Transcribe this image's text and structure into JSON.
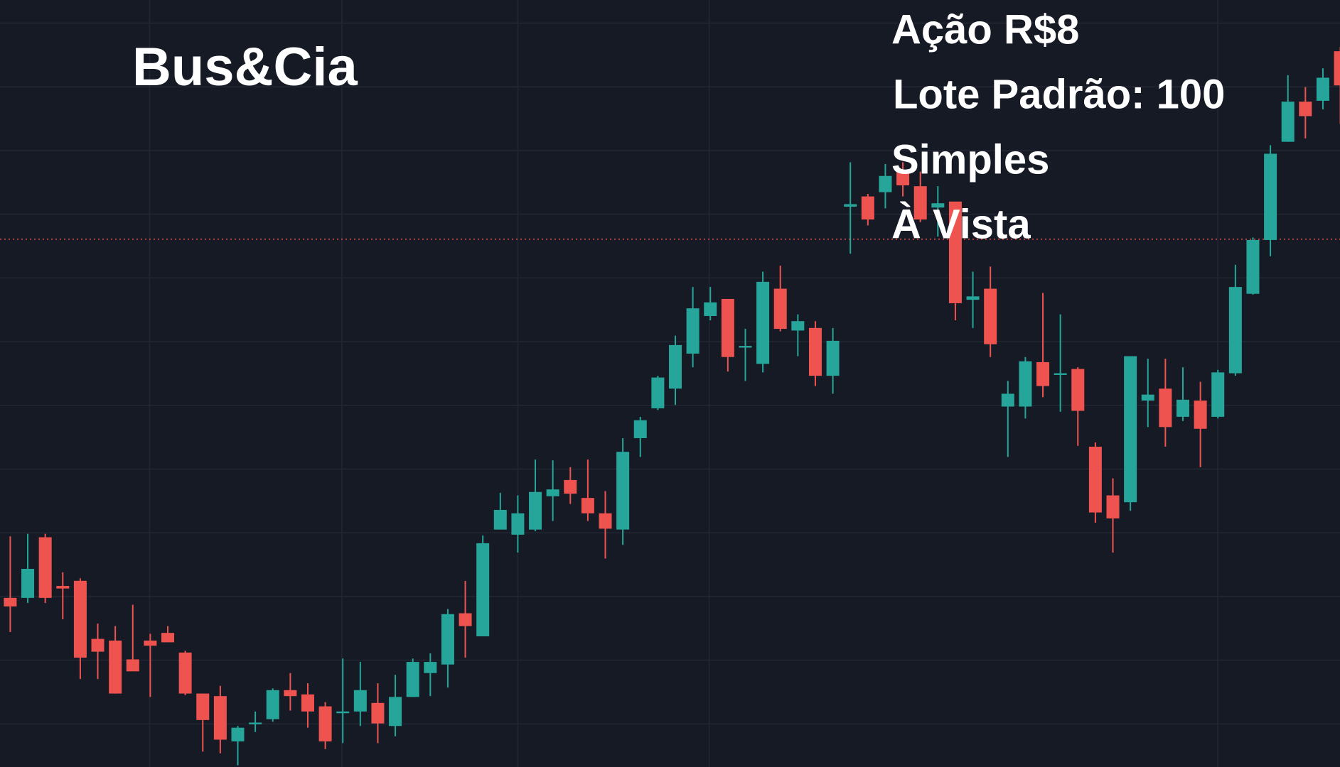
{
  "chart_data": {
    "type": "candlestick",
    "title": "Bus&Cia",
    "annotations": [
      "Ação R$8",
      "Lote Padrão: 100",
      "Simples",
      "À Vista"
    ],
    "up_color": "#26a69a",
    "down_color": "#ef5350",
    "ylim": [
      0,
      898
    ],
    "price_line": 618,
    "open": [
      198,
      198,
      269,
      212,
      218,
      150,
      148,
      126,
      148,
      157,
      134,
      86,
      83,
      30,
      50,
      56,
      90,
      85,
      71,
      63,
      65,
      75,
      48,
      82,
      110,
      120,
      180,
      153,
      278,
      272,
      278,
      317,
      336,
      315,
      297,
      278,
      385,
      420,
      443,
      484,
      528,
      548,
      491,
      472,
      560,
      511,
      514,
      458,
      656,
      668,
      673,
      697,
      680,
      655,
      662,
      547,
      560,
      422,
      422,
      474,
      459,
      466,
      375,
      318,
      310,
      429,
      443,
      410,
      429,
      410,
      461,
      554,
      617,
      732,
      779,
      780,
      838
    ],
    "high": [
      270,
      273,
      273,
      228,
      221,
      168,
      165,
      190,
      156,
      165,
      136,
      86,
      95,
      48,
      65,
      92,
      110,
      98,
      76,
      127,
      123,
      98,
      108,
      127,
      133,
      185,
      218,
      271,
      321,
      318,
      360,
      359,
      351,
      360,
      323,
      385,
      410,
      458,
      505,
      562,
      562,
      548,
      513,
      580,
      587,
      530,
      522,
      514,
      708,
      671,
      706,
      708,
      697,
      680,
      662,
      580,
      586,
      452,
      480,
      555,
      530,
      468,
      380,
      338,
      481,
      478,
      478,
      468,
      451,
      465,
      588,
      620,
      728,
      810,
      796,
      818,
      843
    ],
    "low": [
      158,
      192,
      192,
      173,
      103,
      103,
      86,
      112,
      82,
      146,
      84,
      18,
      16,
      2,
      41,
      53,
      66,
      46,
      21,
      28,
      48,
      28,
      36,
      82,
      83,
      93,
      128,
      153,
      278,
      251,
      276,
      288,
      308,
      288,
      244,
      260,
      363,
      418,
      424,
      468,
      523,
      463,
      452,
      462,
      510,
      481,
      446,
      437,
      601,
      634,
      654,
      668,
      638,
      621,
      523,
      514,
      480,
      363,
      408,
      433,
      416,
      376,
      286,
      251,
      300,
      398,
      375,
      405,
      351,
      408,
      458,
      553,
      598,
      732,
      736,
      770,
      753
    ],
    "close": [
      188,
      232,
      198,
      209,
      128,
      135,
      86,
      112,
      142,
      146,
      86,
      55,
      32,
      46,
      52,
      90,
      83,
      65,
      30,
      65,
      90,
      51,
      82,
      123,
      123,
      179,
      165,
      262,
      301,
      297,
      322,
      325,
      320,
      297,
      279,
      369,
      406,
      456,
      494,
      537,
      544,
      480,
      493,
      568,
      513,
      522,
      458,
      499,
      659,
      641,
      692,
      681,
      641,
      660,
      543,
      551,
      495,
      437,
      475,
      446,
      461,
      417,
      298,
      291,
      481,
      436,
      398,
      430,
      396,
      462,
      562,
      617,
      718,
      779,
      762,
      807,
      798
    ]
  }
}
